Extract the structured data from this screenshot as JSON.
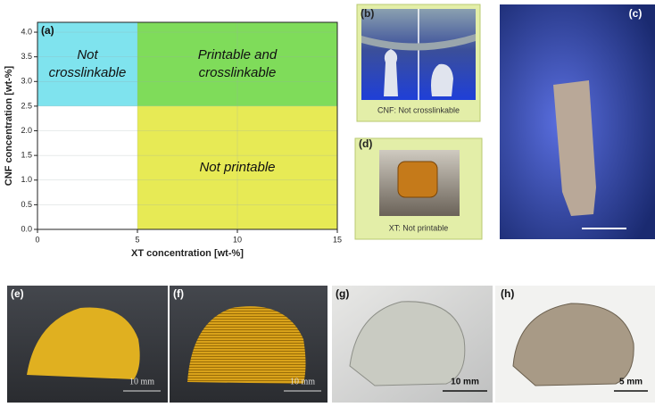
{
  "chart_data": {
    "type": "region",
    "panel": "(a)",
    "x_label": "XT concentration [wt-%]",
    "y_label": "CNF concentration [wt-%]",
    "xlim": [
      0,
      15
    ],
    "xticks": [
      0,
      5,
      10,
      15
    ],
    "ylim": [
      0,
      4.2
    ],
    "yticks": [
      {
        "value": 0,
        "label": "0.0"
      },
      0.5,
      {
        "value": 1,
        "label": "1.0"
      },
      1.5,
      {
        "value": 2,
        "label": "2.0"
      },
      2.5,
      {
        "value": 3,
        "label": "3.0"
      },
      3.5,
      {
        "value": 4,
        "label": "4.0"
      }
    ],
    "grid": true,
    "regions": [
      {
        "lines": [
          "Not",
          "crosslinkable"
        ],
        "color": "#7fe3ee",
        "x": [
          0,
          5
        ],
        "y": [
          2.5,
          4.2
        ]
      },
      {
        "lines": [
          "Printable and",
          "crosslinkable"
        ],
        "color": "#7fdc5a",
        "x": [
          5,
          15
        ],
        "y": [
          2.5,
          4.2
        ]
      },
      {
        "lines": [
          "Not printable"
        ],
        "color": "#e7ea55",
        "x": [
          5,
          15
        ],
        "y": [
          0,
          2.5
        ]
      }
    ]
  },
  "panels": {
    "b": {
      "label": "(b)",
      "caption": "CNF: Not crosslinkable"
    },
    "c": {
      "label": "(c)"
    },
    "d": {
      "label": "(d)",
      "caption": "XT: Not printable"
    },
    "e": {
      "label": "(e)",
      "scale": "10 mm"
    },
    "f": {
      "label": "(f)",
      "scale": "10 mm"
    },
    "g": {
      "label": "(g)",
      "scale": "10 mm"
    },
    "h": {
      "label": "(h)",
      "scale": "5 mm"
    }
  }
}
